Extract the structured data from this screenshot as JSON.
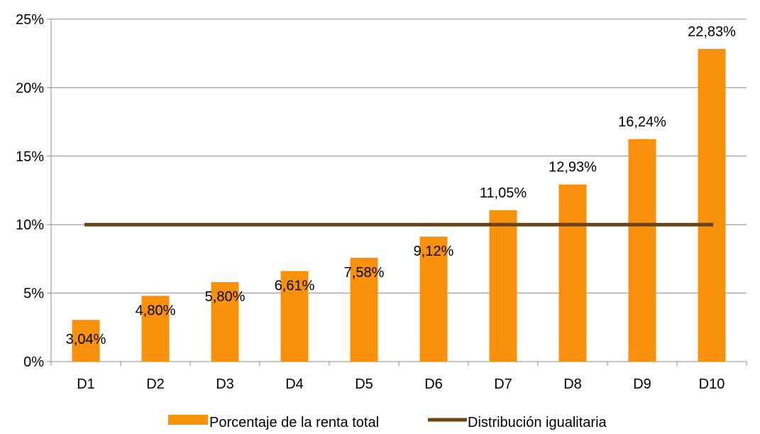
{
  "chart_data": {
    "type": "bar",
    "title": "",
    "xlabel": "",
    "ylabel": "",
    "categories": [
      "D1",
      "D2",
      "D3",
      "D4",
      "D5",
      "D6",
      "D7",
      "D8",
      "D9",
      "D10"
    ],
    "series": [
      {
        "name": "Porcentaje de la renta total",
        "type": "bar",
        "color": "#F7900A",
        "values": [
          3.04,
          4.8,
          5.8,
          6.61,
          7.58,
          9.12,
          11.05,
          12.93,
          16.24,
          22.83
        ],
        "labels": [
          "3,04%",
          "4,80%",
          "5,80%",
          "6,61%",
          "7,58%",
          "9,12%",
          "11,05%",
          "12,93%",
          "16,24%",
          "22,83%"
        ]
      },
      {
        "name": "Distribución igualitaria",
        "type": "line",
        "color": "#6B4312",
        "values": [
          10,
          10,
          10,
          10,
          10,
          10,
          10,
          10,
          10,
          10
        ]
      }
    ],
    "ylim": [
      0,
      25
    ],
    "yticks": [
      0,
      5,
      10,
      15,
      20,
      25
    ],
    "ytick_labels": [
      "0%",
      "5%",
      "10%",
      "15%",
      "20%",
      "25%"
    ],
    "grid": true,
    "gridline_color": "#8C8C8C",
    "legend_position": "bottom"
  }
}
